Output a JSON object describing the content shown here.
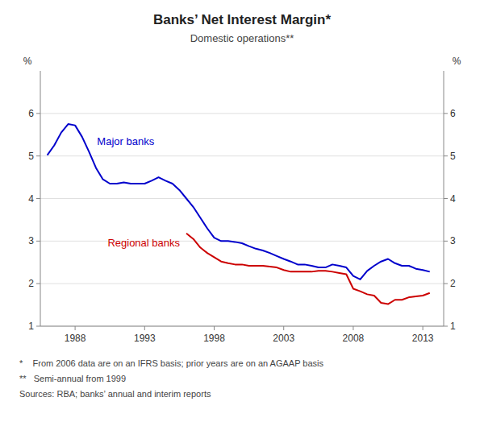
{
  "chart_data": {
    "type": "line",
    "title": "Banks’ Net Interest Margin*",
    "subtitle": "Domestic operations**",
    "ylabel": "%",
    "y2label": "%",
    "annotations": [
      "*    From 2006 data are on an IFRS basis; prior years are on an AGAAP basis",
      "**   Semi-annual from 1999",
      "Sources: RBA; banks’ annual and interim reports"
    ],
    "xlim": [
      1985.5,
      2014.5
    ],
    "xticks": [
      1988,
      1993,
      1998,
      2003,
      2008,
      2013
    ],
    "ylim": [
      1,
      7
    ],
    "yticks": [
      1,
      2,
      3,
      4,
      5,
      6
    ],
    "y2lim": [
      1,
      7
    ],
    "y2ticks": [
      1,
      2,
      3,
      4,
      5,
      6
    ],
    "grid": true,
    "series": [
      {
        "name": "Major banks",
        "color": "#0000cc",
        "x": [
          1986,
          1986.5,
          1987,
          1987.5,
          1988,
          1988.5,
          1989,
          1989.5,
          1990,
          1990.5,
          1991,
          1991.5,
          1992,
          1992.5,
          1993,
          1993.5,
          1994,
          1994.5,
          1995,
          1995.5,
          1996,
          1996.5,
          1997,
          1997.5,
          1998,
          1998.5,
          1999,
          1999.5,
          2000,
          2000.5,
          2001,
          2001.5,
          2002,
          2002.5,
          2003,
          2003.5,
          2004,
          2004.5,
          2005,
          2005.5,
          2006,
          2006.5,
          2007,
          2007.5,
          2008,
          2008.5,
          2009,
          2009.5,
          2010,
          2010.5,
          2011,
          2011.5,
          2012,
          2012.5,
          2013,
          2013.5
        ],
        "values": [
          5.02,
          5.25,
          5.55,
          5.75,
          5.72,
          5.45,
          5.1,
          4.72,
          4.45,
          4.35,
          4.35,
          4.38,
          4.35,
          4.35,
          4.35,
          4.42,
          4.5,
          4.42,
          4.35,
          4.2,
          4.0,
          3.8,
          3.55,
          3.3,
          3.08,
          3.0,
          3.0,
          2.98,
          2.95,
          2.88,
          2.82,
          2.78,
          2.72,
          2.65,
          2.58,
          2.52,
          2.45,
          2.45,
          2.42,
          2.38,
          2.38,
          2.45,
          2.42,
          2.38,
          2.18,
          2.1,
          2.3,
          2.42,
          2.52,
          2.58,
          2.48,
          2.42,
          2.42,
          2.35,
          2.32,
          2.28
        ]
      },
      {
        "name": "Regional banks",
        "color": "#cc0000",
        "x": [
          1996,
          1996.5,
          1997,
          1997.5,
          1998,
          1998.5,
          1999,
          1999.5,
          2000,
          2000.5,
          2001,
          2001.5,
          2002,
          2002.5,
          2003,
          2003.5,
          2004,
          2004.5,
          2005,
          2005.5,
          2006,
          2006.5,
          2007,
          2007.5,
          2008,
          2008.5,
          2009,
          2009.5,
          2010,
          2010.5,
          2011,
          2011.5,
          2012,
          2012.5,
          2013,
          2013.5
        ],
        "values": [
          3.18,
          3.05,
          2.85,
          2.72,
          2.62,
          2.52,
          2.48,
          2.45,
          2.45,
          2.42,
          2.42,
          2.42,
          2.4,
          2.38,
          2.32,
          2.28,
          2.28,
          2.28,
          2.28,
          2.3,
          2.3,
          2.28,
          2.25,
          2.22,
          1.88,
          1.82,
          1.75,
          1.72,
          1.55,
          1.52,
          1.62,
          1.62,
          1.68,
          1.7,
          1.72,
          1.78
        ]
      }
    ]
  }
}
